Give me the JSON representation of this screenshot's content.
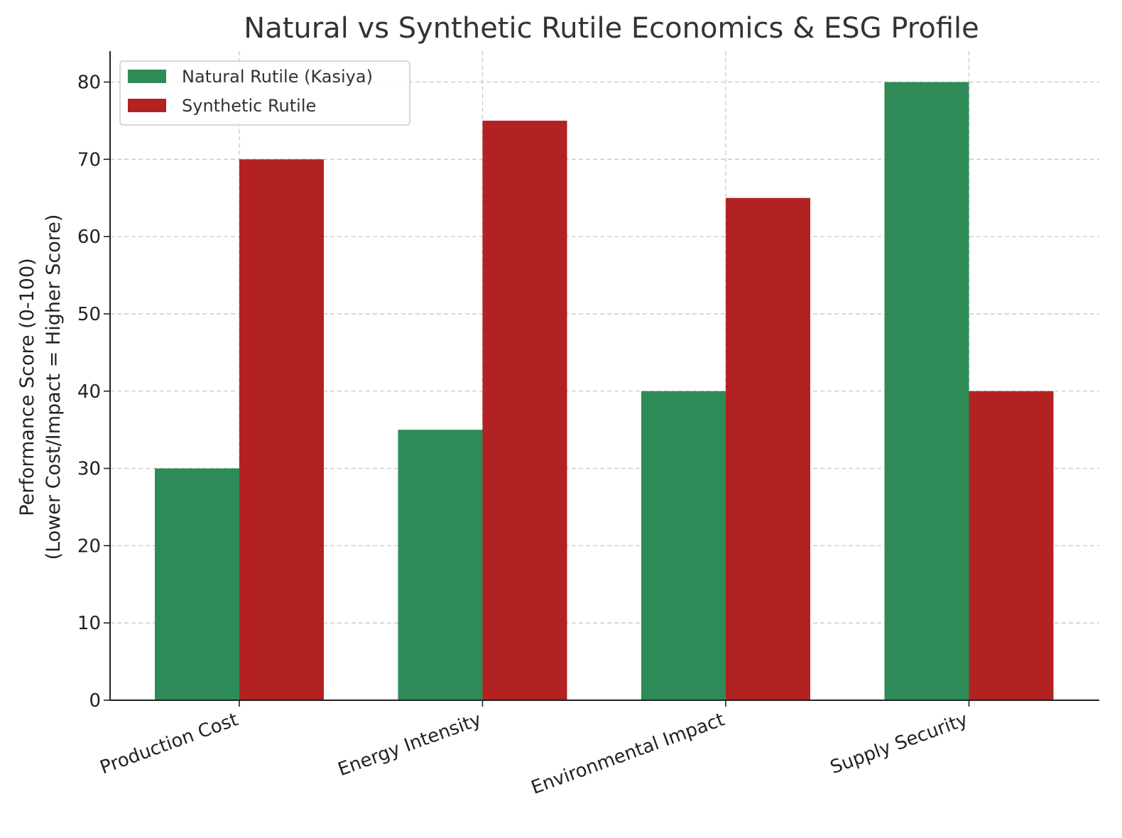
{
  "chart_data": {
    "type": "bar",
    "title": "Natural vs Synthetic Rutile Economics & ESG Profile",
    "ylabel_lines": [
      "Performance Score (0-100)",
      "(Lower Cost/Impact = Higher Score)"
    ],
    "xlabel": "",
    "categories": [
      "Production Cost",
      "Energy Intensity",
      "Environmental Impact",
      "Supply Security"
    ],
    "series": [
      {
        "name": "Natural Rutile (Kasiya)",
        "color": "#2e8b57",
        "values": [
          30,
          35,
          40,
          80
        ]
      },
      {
        "name": "Synthetic Rutile",
        "color": "#b22222",
        "values": [
          70,
          75,
          65,
          40
        ]
      }
    ],
    "ylim": [
      0,
      84
    ],
    "yticks": [
      0,
      10,
      20,
      30,
      40,
      50,
      60,
      70,
      80
    ],
    "grid": true,
    "legend_position": "top-left"
  }
}
